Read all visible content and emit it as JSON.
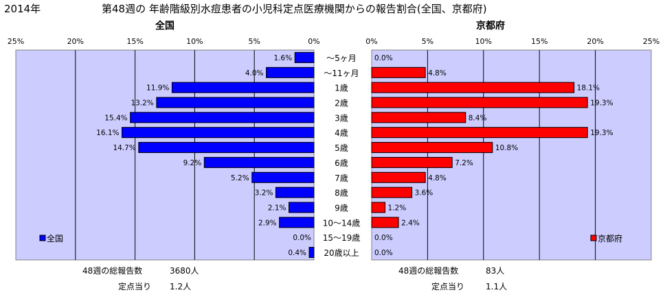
{
  "header": {
    "year": "2014年",
    "title": "第48週の 年齢階級別水痘患者の小児科定点医療機関からの報告割合(全国、京都府)"
  },
  "chart_data": [
    {
      "type": "bar",
      "orientation": "horizontal",
      "title": "全国",
      "categories": [
        "～5ヶ月",
        "～11ヶ月",
        "1歳",
        "2歳",
        "3歳",
        "4歳",
        "5歳",
        "6歳",
        "7歳",
        "8歳",
        "9歳",
        "10～14歳",
        "15～19歳",
        "20歳以上"
      ],
      "series": [
        {
          "name": "全国",
          "values": [
            1.6,
            4.0,
            11.9,
            13.2,
            15.4,
            16.1,
            14.7,
            9.2,
            5.2,
            3.2,
            2.1,
            2.9,
            0.0,
            0.4
          ],
          "labels": [
            "1.6%",
            "4.0%",
            "11.9%",
            "13.2%",
            "15.4%",
            "16.1%",
            "14.7%",
            "9.2%",
            "5.2%",
            "3.2%",
            "2.1%",
            "2.9%",
            "0.0%",
            "0.4%"
          ],
          "color": "#0000ff"
        }
      ],
      "xlim": [
        0,
        25
      ],
      "x_reversed": true,
      "xticks": [
        "25%",
        "20%",
        "15%",
        "10%",
        "5%",
        "0%"
      ],
      "grid": true,
      "legend": "bottom-left",
      "plot_background": "#ccccff",
      "total_label": "48週の総報告数",
      "total_value": "3680人",
      "per_site_label": "定点当り",
      "per_site_value": "1.2人"
    },
    {
      "type": "bar",
      "orientation": "horizontal",
      "title": "京都府",
      "categories": [
        "～5ヶ月",
        "～11ヶ月",
        "1歳",
        "2歳",
        "3歳",
        "4歳",
        "5歳",
        "6歳",
        "7歳",
        "8歳",
        "9歳",
        "10～14歳",
        "15～19歳",
        "20歳以上"
      ],
      "series": [
        {
          "name": "京都府",
          "values": [
            0.0,
            4.8,
            18.1,
            19.3,
            8.4,
            19.3,
            10.8,
            7.2,
            4.8,
            3.6,
            1.2,
            2.4,
            0.0,
            0.0
          ],
          "labels": [
            "0.0%",
            "4.8%",
            "18.1%",
            "19.3%",
            "8.4%",
            "19.3%",
            "10.8%",
            "7.2%",
            "4.8%",
            "3.6%",
            "1.2%",
            "2.4%",
            "0.0%",
            "0.0%"
          ],
          "color": "#ff0000"
        }
      ],
      "xlim": [
        0,
        25
      ],
      "x_reversed": false,
      "xticks": [
        "0%",
        "5%",
        "10%",
        "15%",
        "20%",
        "25%"
      ],
      "grid": true,
      "legend": "bottom-right",
      "plot_background": "#ccccff",
      "total_label": "48週の総報告数",
      "total_value": "83人",
      "per_site_label": "定点当り",
      "per_site_value": "1.1人"
    }
  ]
}
